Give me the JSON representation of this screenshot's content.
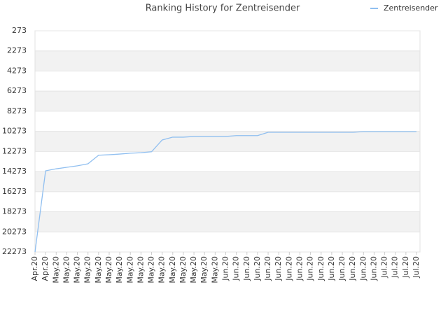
{
  "chart_data": {
    "type": "line",
    "title": "Ranking History for Zentreisender",
    "categories": [
      "Apr.20",
      "Apr.20",
      "May.20",
      "May.20",
      "May.20",
      "May.20",
      "May.20",
      "May.20",
      "May.20",
      "May.20",
      "May.20",
      "May.20",
      "May.20",
      "May.20",
      "May.20",
      "May.20",
      "May.20",
      "May.20",
      "Jun.20",
      "Jun.20",
      "Jun.20",
      "Jun.20",
      "Jun.20",
      "Jun.20",
      "Jun.20",
      "Jun.20",
      "Jun.20",
      "Jun.20",
      "Jun.20",
      "Jun.20",
      "Jun.20",
      "Jun.20",
      "Jun.20",
      "Jul.20",
      "Jul.20",
      "Jul.20",
      "Jul.20"
    ],
    "series": [
      {
        "name": "Zentreisender",
        "color": "#90bff0",
        "values": [
          22273,
          14200,
          14000,
          13850,
          13700,
          13500,
          12650,
          12600,
          12530,
          12450,
          12400,
          12300,
          11130,
          10850,
          10850,
          10780,
          10780,
          10780,
          10780,
          10700,
          10700,
          10700,
          10370,
          10370,
          10370,
          10370,
          10370,
          10370,
          10370,
          10370,
          10370,
          10300,
          10300,
          10300,
          10300,
          10300,
          10300
        ]
      }
    ],
    "ylim": [
      22273,
      273
    ],
    "yticks": [
      273,
      2273,
      4273,
      6273,
      8273,
      10273,
      12273,
      14273,
      16273,
      18273,
      20273,
      22273
    ],
    "grid": true,
    "legend": "top-right"
  }
}
